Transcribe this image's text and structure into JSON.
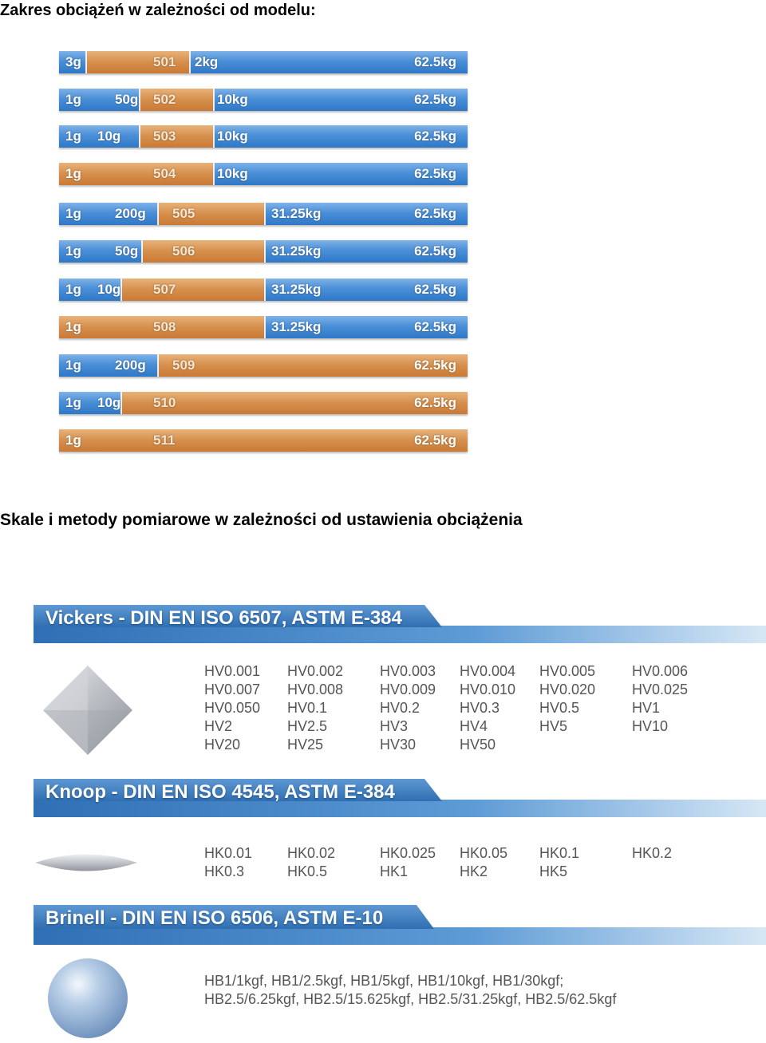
{
  "heading_load": "Zakres obciążeń w zależności od modelu:",
  "heading_scales": "Skale i metody pomiarowe w zależności od ustawienia obciążenia",
  "bars": [
    {
      "min": "3g",
      "mid": "",
      "model": "501",
      "start": "2kg",
      "max": "62.5kg"
    },
    {
      "min": "1g",
      "mid": "50g",
      "model": "502",
      "start": "10kg",
      "max": "62.5kg"
    },
    {
      "min": "1g",
      "mid": "10g",
      "model": "503",
      "start": "10kg",
      "max": "62.5kg"
    },
    {
      "min": "1g",
      "mid": "",
      "model": "504",
      "start": "10kg",
      "max": "62.5kg"
    },
    {
      "min": "1g",
      "mid": "200g",
      "model": "505",
      "start": "31.25kg",
      "max": "62.5kg"
    },
    {
      "min": "1g",
      "mid": "50g",
      "model": "506",
      "start": "31.25kg",
      "max": "62.5kg"
    },
    {
      "min": "1g",
      "mid": "10g",
      "model": "507",
      "start": "31.25kg",
      "max": "62.5kg"
    },
    {
      "min": "1g",
      "mid": "",
      "model": "508",
      "start": "31.25kg",
      "max": "62.5kg"
    },
    {
      "min": "1g",
      "mid": "200g",
      "model": "509",
      "start": "",
      "max": "62.5kg"
    },
    {
      "min": "1g",
      "mid": "10g",
      "model": "510",
      "start": "",
      "max": "62.5kg"
    },
    {
      "min": "1g",
      "mid": "",
      "model": "511",
      "start": "",
      "max": "62.5kg"
    }
  ],
  "vickers": {
    "title": "Vickers - DIN EN ISO 6507, ASTM E-384",
    "rows": [
      [
        "HV0.001",
        "HV0.002",
        "HV0.003",
        "HV0.004",
        "HV0.005",
        "HV0.006"
      ],
      [
        "HV0.007",
        "HV0.008",
        "HV0.009",
        "HV0.010",
        "HV0.020",
        "HV0.025"
      ],
      [
        "HV0.050",
        "HV0.1",
        "HV0.2",
        "HV0.3",
        "HV0.5",
        "HV1"
      ],
      [
        "HV2",
        "HV2.5",
        "HV3",
        "HV4",
        "HV5",
        "HV10"
      ],
      [
        "HV20",
        "HV25",
        "HV30",
        "HV50",
        "",
        ""
      ]
    ]
  },
  "knoop": {
    "title": "Knoop - DIN EN ISO 4545, ASTM E-384",
    "rows": [
      [
        "HK0.01",
        "HK0.02",
        "HK0.025",
        "HK0.05",
        "HK0.1",
        "HK0.2"
      ],
      [
        "HK0.3",
        "HK0.5",
        "HK1",
        "HK2",
        "HK5",
        ""
      ]
    ]
  },
  "brinell": {
    "title": "Brinell - DIN EN ISO 6506, ASTM E-10",
    "line1": "HB1/1kgf, HB1/2.5kgf, HB1/5kgf, HB1/10kgf, HB1/30kgf;",
    "line2": "HB2.5/6.25kgf, HB2.5/15.625kgf, HB2.5/31.25kgf, HB2.5/62.5kgf"
  },
  "colors": {
    "bar_blue": "#4a8fd8",
    "bar_orange": "#d68f4c",
    "banner_blue": "#3f7fc3"
  },
  "icons": [
    "vickers-diamond-icon",
    "knoop-rhombus-icon",
    "brinell-ball-icon"
  ]
}
